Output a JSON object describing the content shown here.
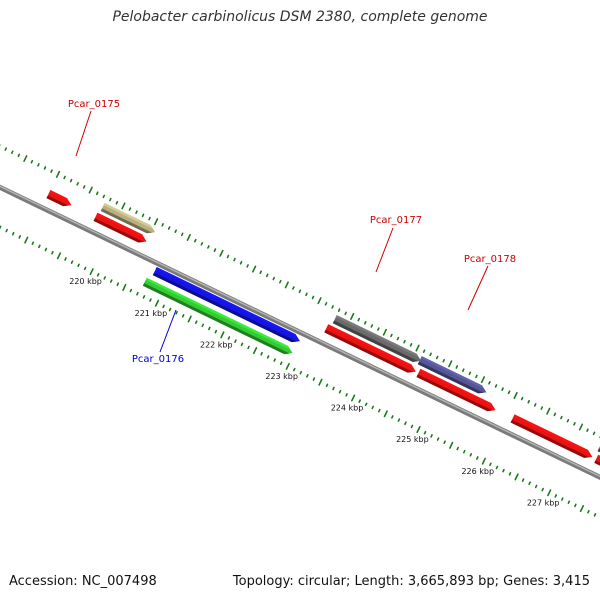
{
  "title": "Pelobacter carbinolicus DSM 2380, complete genome",
  "footer": {
    "accession": "Accession: NC_007498",
    "topology": "Topology: circular; Length: 3,665,893 bp; Genes: 3,415"
  },
  "colors": {
    "backbone": "#8a8a8a",
    "tick": "#1a7a1a",
    "label_red": "#cc0000",
    "label_blue": "#0000cc",
    "gene_red": "#ee1111",
    "gene_blue": "#1414e6",
    "gene_green": "#33cc33",
    "gene_olive": "#b8b080",
    "gene_gray": "#6a6a6a",
    "gene_purple": "#555599"
  },
  "scale_labels": [
    "220 kbp",
    "221 kbp",
    "222 kbp",
    "223 kbp",
    "224 kbp",
    "225 kbp",
    "226 kbp",
    "227 kbp"
  ],
  "features": [
    {
      "id": "Pcar_0175",
      "label": "Pcar_0175",
      "track": "outer2",
      "start": 219.75,
      "end": 220.55,
      "color": "gene_olive",
      "label_color": "label_red",
      "labeled": true
    },
    {
      "id": "red-arrow-a",
      "track": "outer1",
      "start": 219.72,
      "end": 220.5,
      "color": "gene_red",
      "labeled": false
    },
    {
      "id": "red-arrow-left",
      "track": "outer1",
      "start": 219.0,
      "end": 219.35,
      "color": "gene_red",
      "labeled": false
    },
    {
      "id": "blue-arrow",
      "track": "inner1",
      "start": 220.78,
      "end": 223.0,
      "color": "gene_blue",
      "labeled": false
    },
    {
      "id": "Pcar_0176",
      "label": "Pcar_0176",
      "track": "inner2",
      "start": 220.72,
      "end": 222.98,
      "color": "gene_green",
      "label_color": "label_blue",
      "labeled": true
    },
    {
      "id": "Pcar_0177",
      "label": "Pcar_0177",
      "track": "outer2",
      "start": 223.3,
      "end": 224.62,
      "color": "gene_gray",
      "label_color": "label_red",
      "labeled": true
    },
    {
      "id": "red-arrow-b",
      "track": "outer1",
      "start": 223.25,
      "end": 224.62,
      "color": "gene_red",
      "labeled": false
    },
    {
      "id": "Pcar_0178",
      "label": "Pcar_0178",
      "track": "outer2",
      "start": 224.6,
      "end": 225.62,
      "color": "gene_purple",
      "label_color": "label_red",
      "labeled": true
    },
    {
      "id": "red-arrow-c",
      "track": "outer1",
      "start": 224.66,
      "end": 225.84,
      "color": "gene_red",
      "labeled": false
    },
    {
      "id": "red-arrow-d",
      "track": "outer1",
      "start": 226.1,
      "end": 227.32,
      "color": "gene_red",
      "labeled": false
    },
    {
      "id": "gray-partial",
      "track": "outer2",
      "start": 227.35,
      "end": 228.0,
      "color": "gene_gray",
      "labeled": false
    },
    {
      "id": "red-partial",
      "track": "outer1",
      "start": 227.38,
      "end": 228.0,
      "color": "gene_red",
      "labeled": false
    }
  ]
}
